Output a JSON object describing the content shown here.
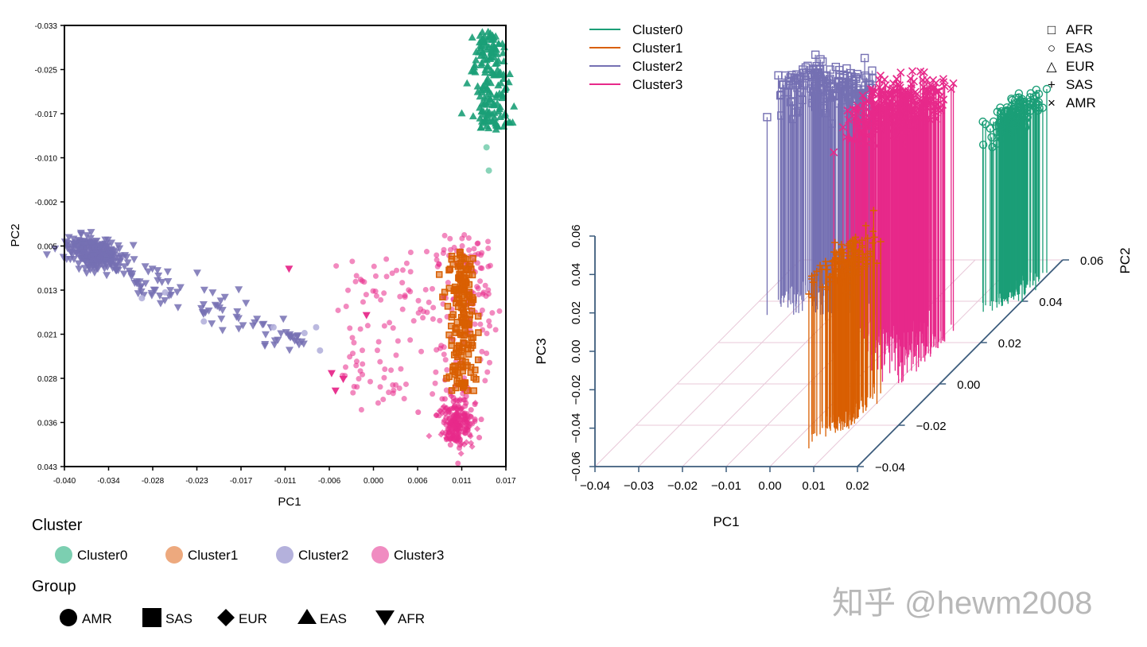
{
  "colors": {
    "cluster0": "#1b9e77",
    "cluster1": "#d95f02",
    "cluster2": "#7570b3",
    "cluster3": "#e7298a",
    "cluster0_light": "#7ccfb1",
    "cluster1_light": "#eda97e",
    "cluster2_light": "#b4b1dc",
    "cluster3_light": "#f08cc1",
    "axis3d": "#3c5c7c",
    "grid3d": "#e8c8d8"
  },
  "left_chart": {
    "xlabel": "PC1",
    "ylabel": "PC2",
    "x_ticks": [
      "-0.040",
      "-0.034",
      "-0.028",
      "-0.023",
      "-0.017",
      "-0.011",
      "-0.006",
      "0.000",
      "0.006",
      "0.011",
      "0.017"
    ],
    "y_ticks": [
      "-0.033",
      "-0.025",
      "-0.017",
      "-0.010",
      "-0.002",
      "0.005",
      "0.013",
      "0.021",
      "0.028",
      "0.036",
      "0.043"
    ]
  },
  "left_legend": {
    "cluster_title": "Cluster",
    "clusters": [
      "Cluster0",
      "Cluster1",
      "Cluster2",
      "Cluster3"
    ],
    "group_title": "Group",
    "groups": [
      "AMR",
      "SAS",
      "EUR",
      "EAS",
      "AFR"
    ]
  },
  "right_chart": {
    "xlabel": "PC1",
    "ylabel": "PC2",
    "zlabel": "PC3",
    "x_ticks": [
      "−0.04",
      "−0.03",
      "−0.02",
      "−0.01",
      "0.00",
      "0.01",
      "0.02"
    ],
    "y_ticks": [
      "−0.04",
      "−0.02",
      "0.00",
      "0.02",
      "0.04",
      "0.06"
    ],
    "z_ticks": [
      "−0.06",
      "−0.04",
      "−0.02",
      "0.00",
      "0.02",
      "0.04",
      "0.06"
    ],
    "cluster_legend": [
      "Cluster0",
      "Cluster1",
      "Cluster2",
      "Cluster3"
    ],
    "group_legend": [
      {
        "symbol": "□",
        "label": "AFR"
      },
      {
        "symbol": "○",
        "label": "EAS"
      },
      {
        "symbol": "△",
        "label": "EUR"
      },
      {
        "symbol": "+",
        "label": "SAS"
      },
      {
        "symbol": "×",
        "label": "AMR"
      }
    ]
  },
  "chart_data": [
    {
      "type": "scatter",
      "title": "",
      "xlabel": "PC1",
      "ylabel": "PC2",
      "xlim": [
        -0.04,
        0.017
      ],
      "ylim": [
        0.043,
        -0.033
      ],
      "series": [
        {
          "name": "Cluster0",
          "group": "EAS",
          "x_center": 0.0145,
          "y_range": [
            -0.032,
            -0.016
          ]
        },
        {
          "name": "Cluster1",
          "group": "SAS",
          "x_center": 0.0115,
          "y_range": [
            0.005,
            0.03
          ]
        },
        {
          "name": "Cluster2",
          "group": "AFR",
          "x_range": [
            -0.04,
            -0.008
          ],
          "y_range": [
            0.003,
            0.022
          ]
        },
        {
          "name": "Cluster3",
          "group": "AMR/EUR",
          "x_range": [
            -0.005,
            0.016
          ],
          "y_range": [
            0.0,
            0.042
          ]
        }
      ]
    },
    {
      "type": "scatter",
      "title": "",
      "xlabel": "PC1",
      "ylabel": "PC2",
      "zlabel": "PC3",
      "xlim": [
        -0.04,
        0.02
      ],
      "ylim": [
        -0.04,
        0.06
      ],
      "zlim": [
        -0.06,
        0.06
      ],
      "series": [
        {
          "name": "Cluster0",
          "group": "EAS",
          "x_center": 0.015
        },
        {
          "name": "Cluster1",
          "group": "SAS",
          "x_center": 0.011
        },
        {
          "name": "Cluster2",
          "group": "AFR",
          "x_range": [
            -0.04,
            -0.02
          ]
        },
        {
          "name": "Cluster3",
          "group": "AMR",
          "x_range": [
            -0.01,
            0.015
          ]
        }
      ]
    }
  ],
  "watermark": "知乎 @hewm2008"
}
